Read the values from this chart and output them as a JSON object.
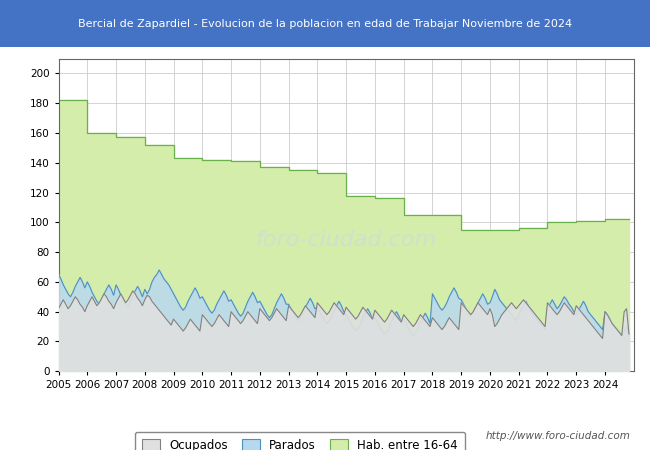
{
  "title": "Bercial de Zapardiel - Evolucion de la poblacion en edad de Trabajar Noviembre de 2024",
  "title_bg": "#4472c4",
  "title_color": "white",
  "ylim": [
    0,
    210
  ],
  "yticks": [
    0,
    20,
    40,
    60,
    80,
    100,
    120,
    140,
    160,
    180,
    200
  ],
  "watermark": "http://www.foro-ciudad.com",
  "hab_16_64_annual": {
    "2005": 182,
    "2006": 160,
    "2007": 157,
    "2008": 152,
    "2009": 143,
    "2010": 142,
    "2011": 141,
    "2012": 137,
    "2013": 135,
    "2014": 133,
    "2015": 118,
    "2016": 116,
    "2017": 105,
    "2018": 105,
    "2019": 95,
    "2020": 95,
    "2021": 96,
    "2022": 100,
    "2023": 101,
    "2024": 102
  },
  "parados_monthly": [
    65,
    62,
    58,
    55,
    52,
    50,
    53,
    57,
    60,
    63,
    60,
    56,
    60,
    57,
    53,
    50,
    47,
    45,
    48,
    52,
    55,
    58,
    55,
    51,
    58,
    55,
    51,
    48,
    45,
    43,
    47,
    51,
    54,
    57,
    54,
    50,
    55,
    52,
    55,
    60,
    63,
    65,
    68,
    65,
    62,
    60,
    58,
    55,
    52,
    49,
    46,
    43,
    41,
    43,
    47,
    50,
    53,
    56,
    53,
    49,
    50,
    47,
    44,
    41,
    39,
    41,
    45,
    48,
    51,
    54,
    51,
    47,
    48,
    45,
    42,
    39,
    37,
    39,
    43,
    47,
    50,
    53,
    50,
    46,
    47,
    44,
    41,
    38,
    36,
    38,
    42,
    46,
    49,
    52,
    49,
    45,
    45,
    42,
    39,
    36,
    34,
    36,
    39,
    43,
    46,
    49,
    46,
    42,
    43,
    40,
    37,
    34,
    32,
    34,
    37,
    41,
    44,
    47,
    44,
    40,
    38,
    35,
    32,
    29,
    27,
    29,
    32,
    36,
    39,
    42,
    39,
    35,
    36,
    33,
    30,
    27,
    25,
    27,
    30,
    34,
    37,
    40,
    37,
    33,
    35,
    32,
    29,
    26,
    24,
    26,
    29,
    33,
    36,
    39,
    36,
    32,
    52,
    49,
    46,
    43,
    41,
    43,
    46,
    50,
    53,
    56,
    53,
    49,
    48,
    45,
    42,
    39,
    37,
    39,
    42,
    46,
    49,
    52,
    49,
    45,
    46,
    50,
    55,
    52,
    48,
    46,
    44,
    42,
    40,
    38,
    36,
    34,
    38,
    41,
    44,
    47,
    44,
    40,
    38,
    36,
    34,
    32,
    30,
    28,
    42,
    45,
    48,
    45,
    42,
    44,
    47,
    50,
    48,
    45,
    43,
    40,
    38,
    41,
    44,
    47,
    44,
    40,
    38,
    36,
    34,
    32,
    30,
    28,
    40,
    38,
    35,
    32,
    30,
    28,
    26,
    24,
    27,
    30,
    25
  ],
  "ocupados_monthly": [
    42,
    45,
    48,
    45,
    42,
    44,
    47,
    50,
    48,
    45,
    43,
    40,
    44,
    47,
    50,
    47,
    44,
    46,
    49,
    52,
    50,
    47,
    45,
    42,
    46,
    49,
    52,
    49,
    46,
    48,
    51,
    54,
    52,
    49,
    47,
    44,
    48,
    51,
    50,
    47,
    45,
    43,
    41,
    39,
    37,
    35,
    33,
    31,
    35,
    33,
    31,
    29,
    27,
    29,
    32,
    35,
    33,
    31,
    29,
    27,
    38,
    36,
    34,
    32,
    30,
    32,
    35,
    38,
    36,
    34,
    32,
    30,
    40,
    38,
    36,
    34,
    32,
    34,
    37,
    40,
    38,
    36,
    34,
    32,
    42,
    40,
    38,
    36,
    34,
    36,
    39,
    42,
    40,
    38,
    36,
    34,
    44,
    42,
    40,
    38,
    36,
    38,
    41,
    44,
    42,
    40,
    38,
    36,
    46,
    44,
    42,
    40,
    38,
    40,
    43,
    46,
    44,
    42,
    40,
    38,
    43,
    41,
    39,
    37,
    35,
    37,
    40,
    43,
    41,
    39,
    37,
    35,
    41,
    39,
    37,
    35,
    33,
    35,
    38,
    41,
    39,
    37,
    35,
    33,
    38,
    36,
    34,
    32,
    30,
    32,
    35,
    38,
    36,
    34,
    32,
    30,
    36,
    34,
    32,
    30,
    28,
    30,
    33,
    36,
    34,
    32,
    30,
    28,
    46,
    44,
    42,
    40,
    38,
    40,
    43,
    46,
    44,
    42,
    40,
    38,
    42,
    38,
    30,
    32,
    35,
    38,
    40,
    42,
    44,
    46,
    44,
    42,
    44,
    46,
    48,
    46,
    44,
    42,
    40,
    38,
    36,
    34,
    32,
    30,
    46,
    44,
    42,
    40,
    38,
    40,
    43,
    46,
    44,
    42,
    40,
    38,
    44,
    42,
    40,
    38,
    36,
    34,
    32,
    30,
    28,
    26,
    24,
    22,
    40,
    38,
    35,
    32,
    30,
    28,
    26,
    24,
    40,
    42,
    25
  ]
}
